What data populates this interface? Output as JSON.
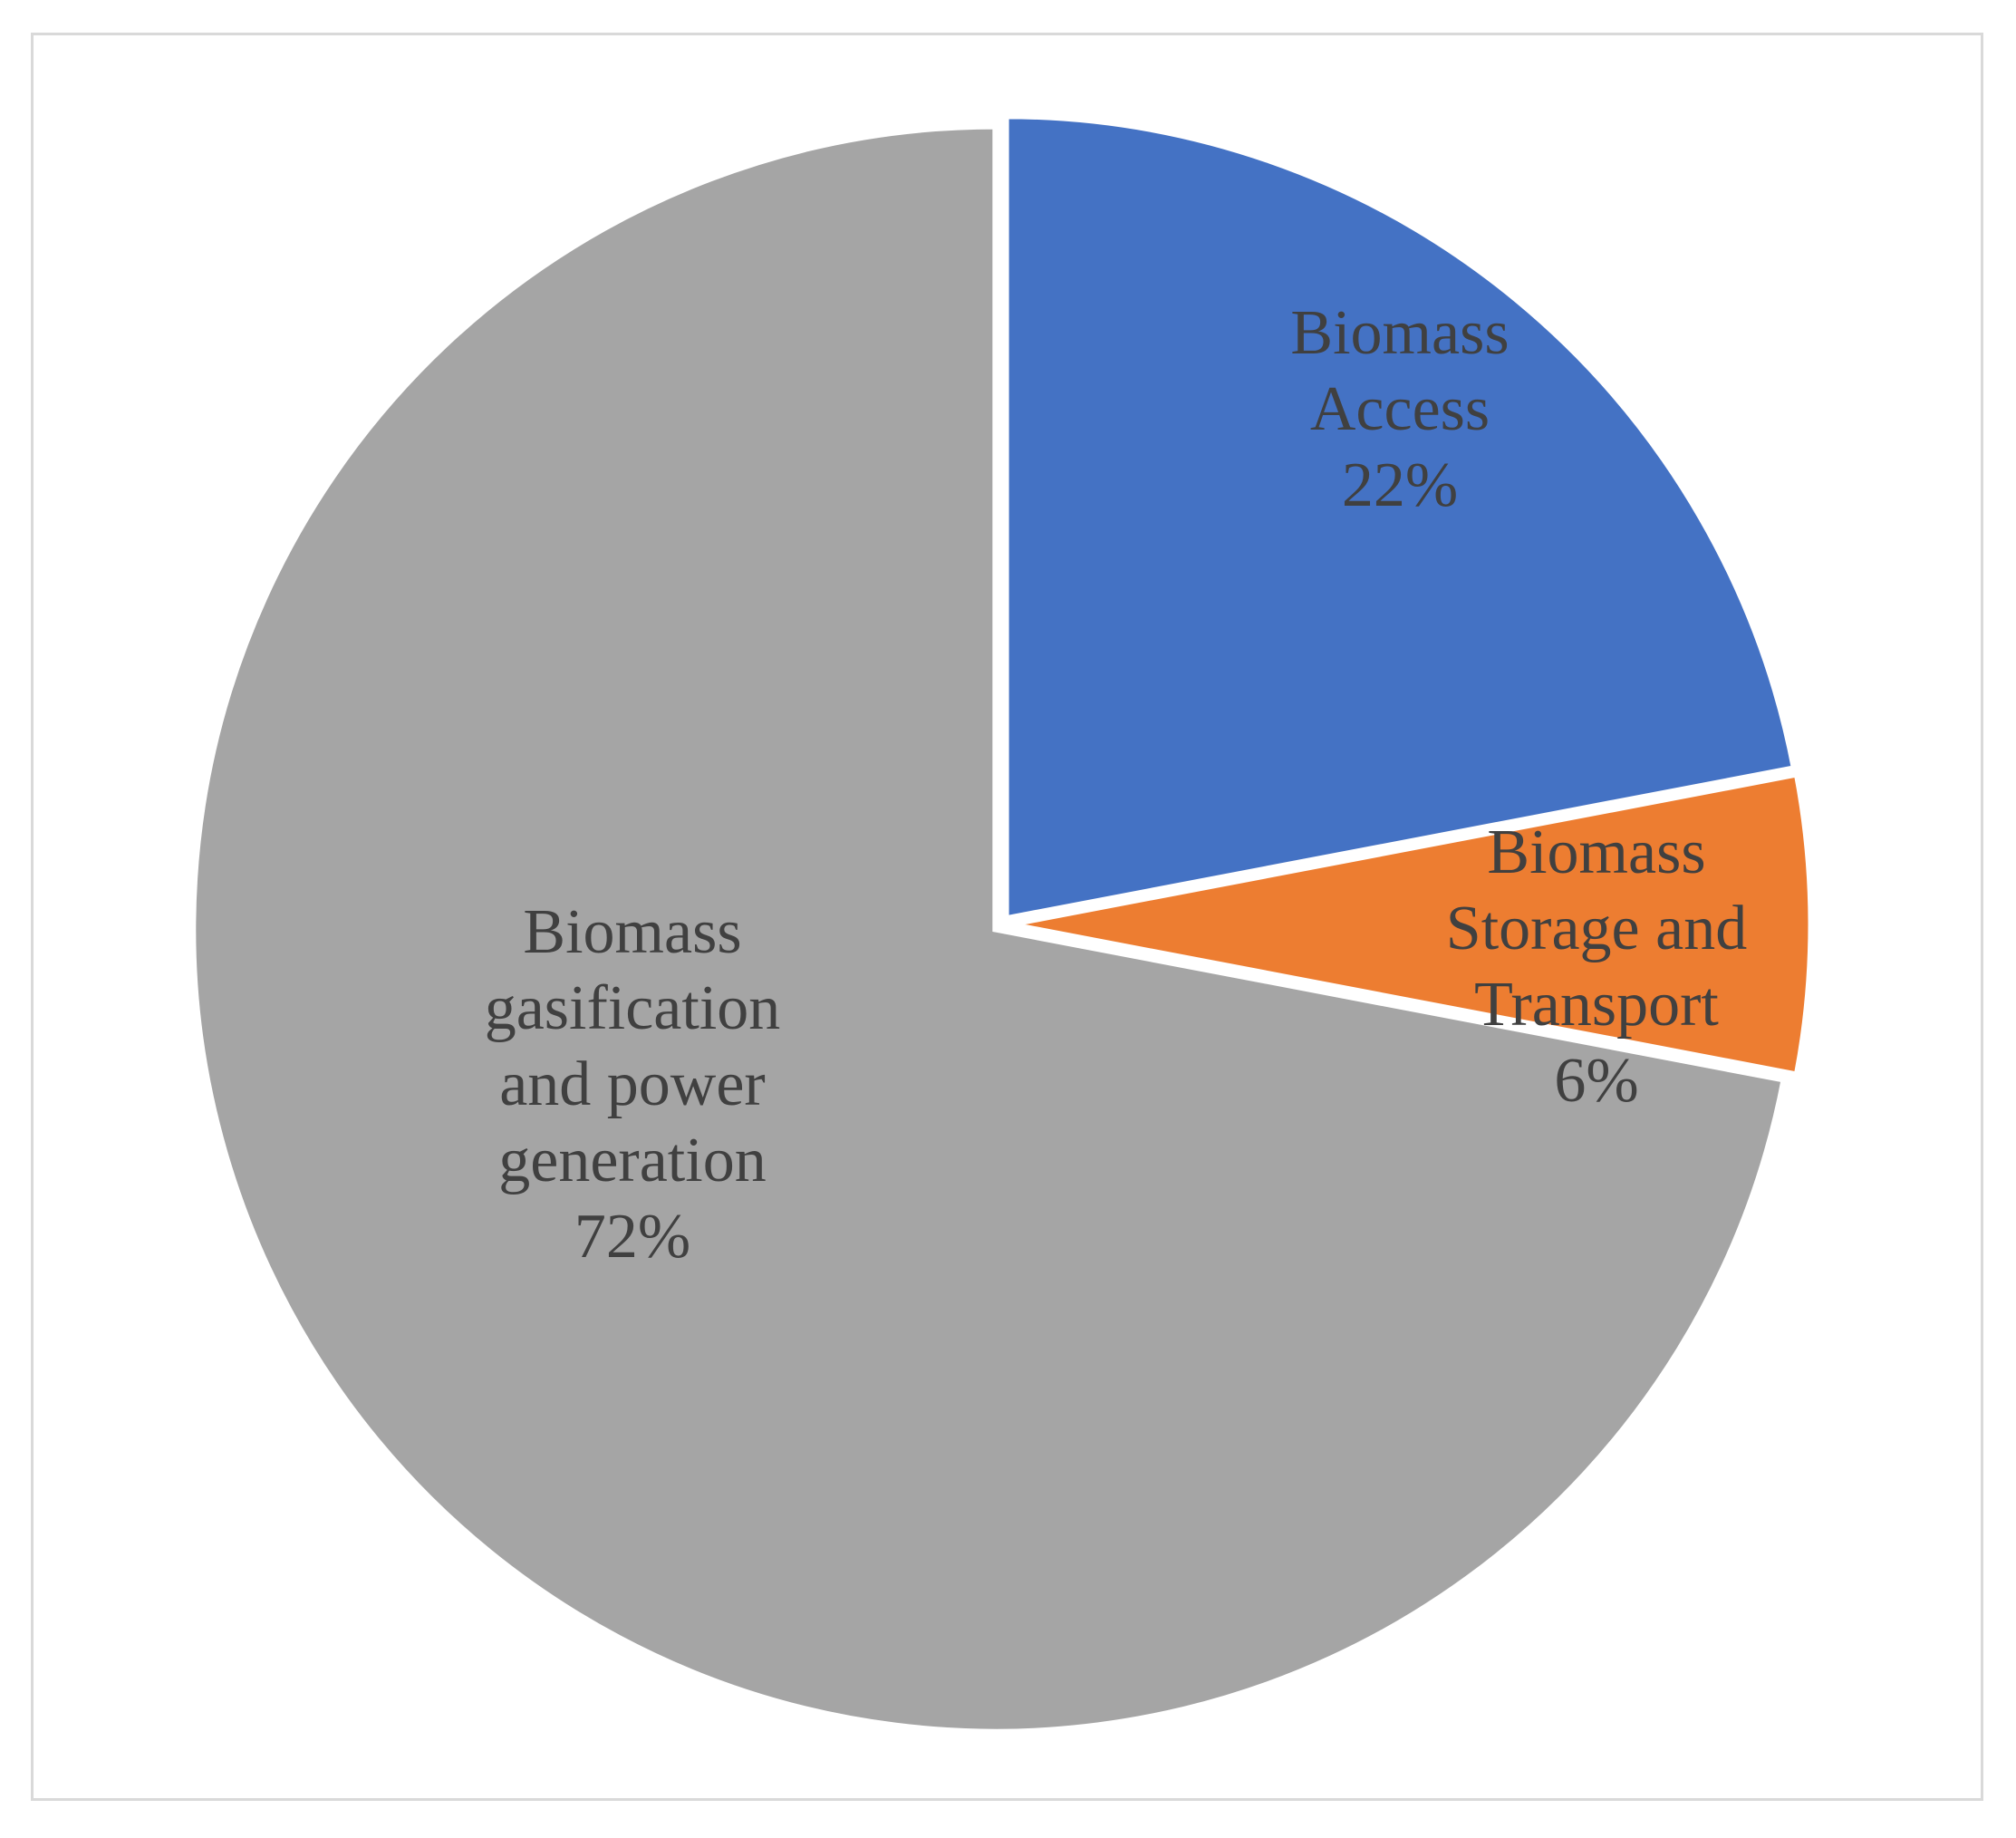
{
  "chart_data": {
    "type": "pie",
    "categories": [
      "Biomass Access",
      "Biomass Storage and Transport",
      "Biomass gasification and power generation"
    ],
    "values": [
      22,
      6,
      72
    ],
    "unit": "%",
    "slices": [
      {
        "label_lines": [
          "Biomass",
          "Access"
        ],
        "value_text": "22%",
        "value": 22,
        "color": "#4472c4"
      },
      {
        "label_lines": [
          "Biomass",
          "Storage and",
          "Transport"
        ],
        "value_text": "6%",
        "value": 6,
        "color": "#ed7d31"
      },
      {
        "label_lines": [
          "Biomass",
          "gasification",
          "and power",
          "generation"
        ],
        "value_text": "72%",
        "value": 72,
        "color": "#a5a5a5"
      }
    ],
    "start_angle": "12 o'clock",
    "direction": "clockwise",
    "legend": "none",
    "title": ""
  }
}
